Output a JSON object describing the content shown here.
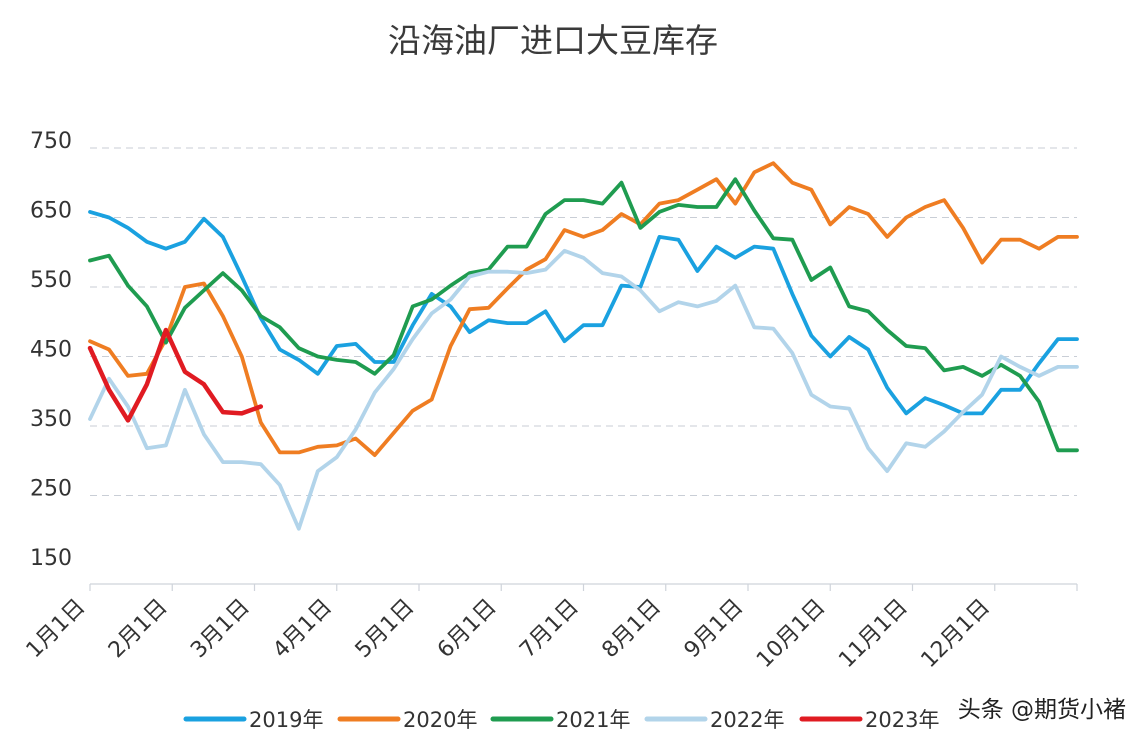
{
  "chart_data": {
    "type": "line",
    "title": "沿海油厂进口大豆库存",
    "xlabel": "",
    "ylabel": "",
    "yticks": [
      150,
      250,
      350,
      450,
      550,
      650,
      750
    ],
    "ylim": [
      120,
      750
    ],
    "x_tick_labels": [
      "1月1日",
      "2月1日",
      "3月1日",
      "4月1日",
      "5月1日",
      "6月1日",
      "7月1日",
      "8月1日",
      "9月1日",
      "10月1日",
      "11月1日",
      "12月1日"
    ],
    "x_unit": "week of year (0 = 1月1日, ~4.34 weeks per month)",
    "xlim": [
      0,
      52
    ],
    "series": [
      {
        "name": "2019年",
        "color": "#1aa1e0",
        "x": [
          0,
          1,
          2,
          3,
          4,
          5,
          6,
          7,
          8,
          9,
          10,
          11,
          12,
          13,
          14,
          15,
          16,
          17,
          18,
          19,
          20,
          21,
          22,
          23,
          24,
          25,
          26,
          27,
          28,
          29,
          30,
          31,
          32,
          33,
          34,
          35,
          36,
          37,
          38,
          39,
          40,
          41,
          42,
          43,
          44,
          45,
          46,
          47,
          48,
          49,
          50,
          51,
          52
        ],
        "values": [
          648,
          640,
          625,
          605,
          595,
          605,
          638,
          612,
          555,
          495,
          450,
          435,
          415,
          455,
          458,
          432,
          432,
          485,
          530,
          512,
          475,
          492,
          488,
          488,
          505,
          462,
          485,
          485,
          542,
          540,
          612,
          608,
          563,
          598,
          582,
          598,
          595,
          530,
          470,
          440,
          468,
          450,
          395,
          358,
          380,
          370,
          358,
          358,
          392,
          392,
          430,
          465,
          465
        ]
      },
      {
        "name": "2020年",
        "color": "#ef7d22",
        "x": [
          0,
          1,
          2,
          3,
          4,
          5,
          6,
          7,
          8,
          9,
          10,
          11,
          12,
          13,
          14,
          15,
          16,
          17,
          18,
          19,
          20,
          21,
          22,
          23,
          24,
          25,
          26,
          27,
          28,
          29,
          30,
          31,
          32,
          33,
          34,
          35,
          36,
          37,
          38,
          39,
          40,
          41,
          42,
          43,
          44,
          45,
          46,
          47,
          48,
          49,
          50,
          51,
          52
        ],
        "values": [
          462,
          450,
          412,
          415,
          465,
          540,
          545,
          498,
          440,
          345,
          302,
          302,
          310,
          312,
          322,
          298,
          330,
          362,
          378,
          455,
          508,
          510,
          538,
          565,
          580,
          622,
          612,
          622,
          645,
          630,
          660,
          665,
          680,
          695,
          660,
          705,
          718,
          690,
          680,
          630,
          655,
          645,
          612,
          640,
          655,
          665,
          625,
          575,
          608,
          608,
          595,
          612,
          612
        ]
      },
      {
        "name": "2021年",
        "color": "#1f9c50",
        "x": [
          0,
          1,
          2,
          3,
          4,
          5,
          6,
          7,
          8,
          9,
          10,
          11,
          12,
          13,
          14,
          15,
          16,
          17,
          18,
          19,
          20,
          21,
          22,
          23,
          24,
          25,
          26,
          27,
          28,
          29,
          30,
          31,
          32,
          33,
          34,
          35,
          36,
          37,
          38,
          39,
          40,
          41,
          42,
          43,
          44,
          45,
          46,
          47,
          48,
          49,
          50,
          51,
          52
        ],
        "values": [
          578,
          585,
          542,
          512,
          460,
          510,
          535,
          560,
          535,
          498,
          482,
          452,
          440,
          435,
          432,
          415,
          442,
          512,
          522,
          542,
          560,
          565,
          598,
          598,
          645,
          665,
          665,
          660,
          690,
          625,
          648,
          658,
          655,
          655,
          695,
          650,
          610,
          608,
          550,
          568,
          512,
          505,
          478,
          455,
          452,
          420,
          425,
          412,
          428,
          412,
          375,
          305,
          305
        ]
      },
      {
        "name": "2022年",
        "color": "#b2d4ea",
        "x": [
          0,
          1,
          2,
          3,
          4,
          5,
          6,
          7,
          8,
          9,
          10,
          11,
          12,
          13,
          14,
          15,
          16,
          17,
          18,
          19,
          20,
          21,
          22,
          23,
          24,
          25,
          26,
          27,
          28,
          29,
          30,
          31,
          32,
          33,
          34,
          35,
          36,
          37,
          38,
          39,
          40,
          41,
          42,
          43,
          44,
          45,
          46,
          47,
          48,
          49,
          50,
          51,
          52
        ],
        "values": [
          350,
          408,
          368,
          308,
          312,
          392,
          328,
          288,
          288,
          285,
          255,
          192,
          275,
          295,
          335,
          388,
          422,
          465,
          502,
          522,
          555,
          562,
          562,
          560,
          565,
          592,
          582,
          560,
          555,
          535,
          505,
          518,
          512,
          520,
          542,
          482,
          480,
          445,
          385,
          368,
          365,
          308,
          275,
          315,
          310,
          332,
          360,
          385,
          440,
          425,
          412,
          425,
          425
        ]
      },
      {
        "name": "2023年",
        "color": "#e01b22",
        "x": [
          0,
          1,
          2,
          3,
          4,
          5,
          6,
          7,
          8,
          9
        ],
        "values": [
          452,
          392,
          348,
          400,
          478,
          418,
          400,
          360,
          358,
          368
        ]
      }
    ],
    "legend_position": "bottom-center"
  },
  "watermark": "头条 @期货小褚"
}
